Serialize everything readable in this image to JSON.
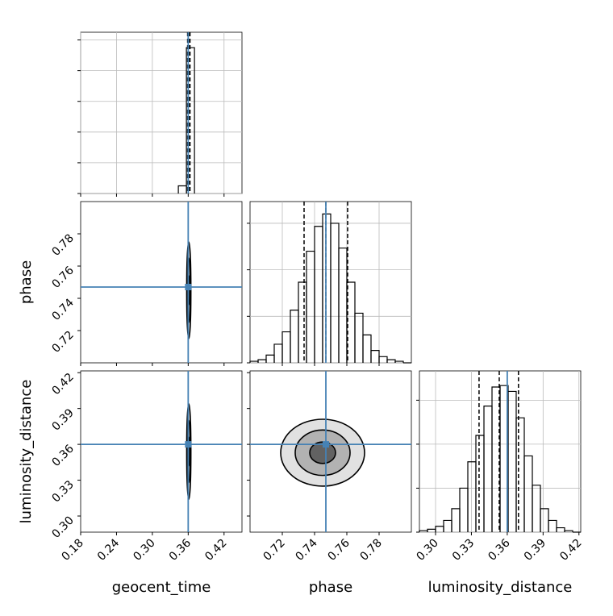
{
  "chart_data": {
    "type": "corner",
    "truth_color": "#4682b4",
    "grid": true,
    "parameters": [
      {
        "name": "geocent_time",
        "xlim": [
          0.18,
          0.45
        ],
        "ticks": [
          0.18,
          0.24,
          {
            "value": 0.3,
            "label": "0.30"
          },
          0.36,
          0.42
        ],
        "truth": 0.36,
        "quantiles": [
          0.359,
          0.361,
          0.363
        ],
        "hist": {
          "bins": [
            0.3435,
            0.357,
            0.3705
          ],
          "values": [
            5,
            95
          ],
          "ylim": [
            0,
            105
          ],
          "yticks": [
            0,
            20,
            40,
            60,
            80,
            100
          ]
        }
      },
      {
        "name": "phase",
        "xlim": [
          0.7,
          0.8
        ],
        "ticks": [
          0.72,
          0.74,
          0.76,
          0.78
        ],
        "truth": 0.747,
        "quantiles": [
          0.7335,
          0.747,
          0.7605
        ],
        "hist": {
          "bins": [
            0.7,
            0.705,
            0.71,
            0.715,
            0.72,
            0.725,
            0.73,
            0.735,
            0.74,
            0.745,
            0.75,
            0.755,
            0.76,
            0.765,
            0.77,
            0.775,
            0.78,
            0.785,
            0.79,
            0.795,
            0.8
          ],
          "values": [
            1,
            2,
            5,
            12,
            20,
            34,
            52,
            72,
            88,
            96,
            90,
            74,
            52,
            32,
            18,
            8,
            4,
            2,
            1,
            0
          ],
          "ylim": [
            0,
            104
          ],
          "yticks": [
            0,
            30,
            60,
            90
          ]
        }
      },
      {
        "name": "luminosity_distance",
        "xlim": [
          0.2865,
          0.4215
        ],
        "ticks": [
          {
            "value": 0.3,
            "label": "0.30"
          },
          0.33,
          0.36,
          0.39,
          0.42
        ],
        "truth": 0.36,
        "quantiles": [
          0.3364,
          0.3533,
          0.3694
        ],
        "hist": {
          "bins": [
            0.2865,
            0.29325,
            0.3,
            0.30675,
            0.3135,
            0.32025,
            0.327,
            0.33375,
            0.3405,
            0.34725,
            0.354,
            0.36075,
            0.3675,
            0.37425,
            0.381,
            0.38775,
            0.3945,
            0.40125,
            0.408,
            0.41475,
            0.4215
          ],
          "values": [
            1,
            2,
            4,
            8,
            16,
            30,
            48,
            66,
            86,
            99,
            100,
            96,
            78,
            52,
            32,
            16,
            8,
            3,
            1,
            0
          ],
          "ylim": [
            0,
            110
          ],
          "yticks": [
            0,
            30,
            60,
            90
          ]
        }
      }
    ],
    "contours": [
      {
        "center": [
          0.361,
          0.745
        ],
        "radii": [
          [
            0.0035,
            0.03
          ],
          [
            0.0025,
            0.02
          ],
          [
            0.0015,
            0.009
          ]
        ]
      },
      {
        "center": [
          0.361,
          0.354
        ],
        "radii": [
          [
            0.0035,
            0.04
          ],
          [
            0.0025,
            0.026
          ],
          [
            0.0015,
            0.012
          ]
        ]
      },
      {
        "center": [
          0.745,
          0.353
        ],
        "radii": [
          [
            0.026,
            0.028
          ],
          [
            0.017,
            0.019
          ],
          [
            0.008,
            0.009
          ]
        ]
      }
    ]
  }
}
